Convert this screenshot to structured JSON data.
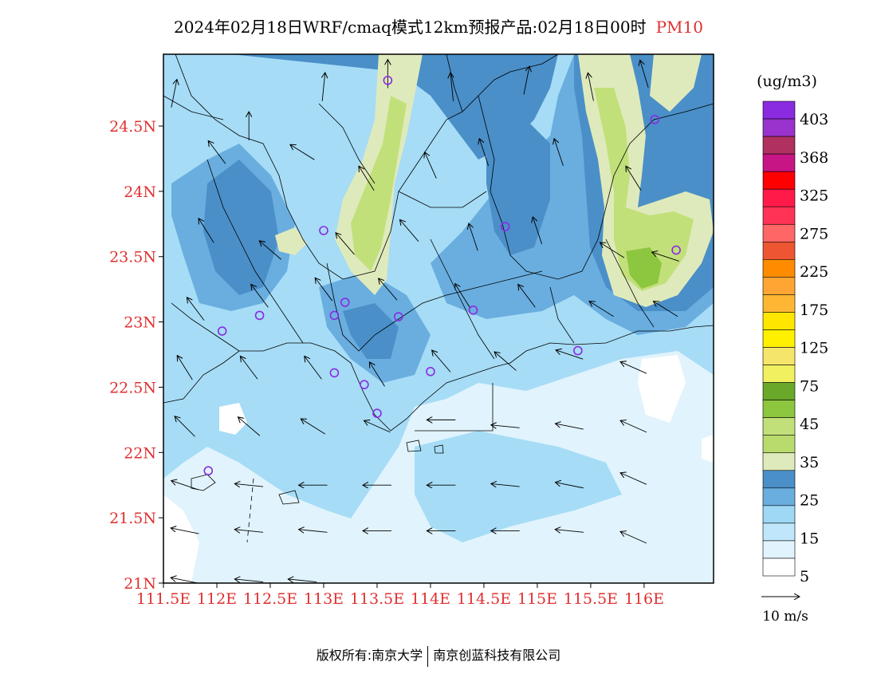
{
  "title": {
    "main": "2024年02月18日WRF/cmaq模式12km预报产品:02月18日00时",
    "pollutant": "PM10"
  },
  "footer": {
    "copyright": "版权所有:南京大学",
    "company": "南京创蓝科技有限公司"
  },
  "axes": {
    "lat_labels": [
      "24.5N",
      "24N",
      "23.5N",
      "23N",
      "22.5N",
      "22N",
      "21.5N",
      "21N"
    ],
    "lon_labels": [
      "111.5E",
      "112E",
      "112.5E",
      "113E",
      "113.5E",
      "114E",
      "114.5E",
      "115E",
      "115.5E",
      "116E"
    ],
    "lat_values": [
      24.5,
      24.0,
      23.5,
      23.0,
      22.5,
      22.0,
      21.5,
      21.0
    ],
    "lon_values": [
      111.5,
      112.0,
      112.5,
      113.0,
      113.5,
      114.0,
      114.5,
      115.0,
      115.5,
      116.0
    ],
    "label_color": "#e03030"
  },
  "legend": {
    "unit": "(ug/m3)",
    "labels": [
      "403",
      "368",
      "325",
      "275",
      "225",
      "175",
      "125",
      "75",
      "45",
      "35",
      "25",
      "15",
      "5"
    ],
    "colors_top_to_bottom": [
      "#8a2be2",
      "#9a32cd",
      "#b03060",
      "#c71585",
      "#ff0000",
      "#ff1a4a",
      "#ff3355",
      "#ff6666",
      "#ee5533",
      "#ff8c00",
      "#ffa533",
      "#ffb733",
      "#ffe600",
      "#fff000",
      "#f5e66b",
      "#f0f060",
      "#6aa82a",
      "#8dc63f",
      "#c2e07a",
      "#b9db6e",
      "#dfeabc",
      "#4a8fc8",
      "#6aaee0",
      "#9ed8f5",
      "#bfe6fb",
      "#e1f3fc",
      "#ffffff"
    ]
  },
  "wind_key": {
    "label": "10 m/s"
  },
  "map_colors": {
    "c5": "#e1f3fc",
    "c10": "#a6dcf6",
    "c15": "#6aaee0",
    "c20": "#4a8fc8",
    "c25": "#dfeabc",
    "c30": "#c2e07a",
    "c40": "#8dc63f"
  },
  "stations": [
    {
      "lon": 113.6,
      "lat": 24.85
    },
    {
      "lon": 116.1,
      "lat": 24.55
    },
    {
      "lon": 113.0,
      "lat": 23.7
    },
    {
      "lon": 114.7,
      "lat": 23.73
    },
    {
      "lon": 116.3,
      "lat": 23.55
    },
    {
      "lon": 113.2,
      "lat": 23.15
    },
    {
      "lon": 112.4,
      "lat": 23.05
    },
    {
      "lon": 113.1,
      "lat": 23.05
    },
    {
      "lon": 113.7,
      "lat": 23.04
    },
    {
      "lon": 114.4,
      "lat": 23.09
    },
    {
      "lon": 112.05,
      "lat": 22.93
    },
    {
      "lon": 115.38,
      "lat": 22.78
    },
    {
      "lon": 113.1,
      "lat": 22.61
    },
    {
      "lon": 114.0,
      "lat": 22.62
    },
    {
      "lon": 113.38,
      "lat": 22.52
    },
    {
      "lon": 113.5,
      "lat": 22.3
    },
    {
      "lon": 111.92,
      "lat": 21.86
    }
  ],
  "wind_vectors": [
    {
      "lon": 111.6,
      "lat": 24.75,
      "u": 0.2,
      "v": 1.0
    },
    {
      "lon": 112.3,
      "lat": 24.5,
      "u": 0.0,
      "v": 1.0
    },
    {
      "lon": 113.0,
      "lat": 24.8,
      "u": 0.1,
      "v": 1.0
    },
    {
      "lon": 113.6,
      "lat": 24.9,
      "u": 0.0,
      "v": 1.0
    },
    {
      "lon": 114.2,
      "lat": 24.8,
      "u": -0.1,
      "v": 1.0
    },
    {
      "lon": 114.9,
      "lat": 24.85,
      "u": 0.2,
      "v": 1.0
    },
    {
      "lon": 115.5,
      "lat": 24.8,
      "u": -0.2,
      "v": 1.0
    },
    {
      "lon": 116.0,
      "lat": 24.9,
      "u": -0.3,
      "v": 1.0
    },
    {
      "lon": 112.0,
      "lat": 24.3,
      "u": -0.6,
      "v": 0.8
    },
    {
      "lon": 112.8,
      "lat": 24.3,
      "u": -0.8,
      "v": 0.5
    },
    {
      "lon": 113.4,
      "lat": 24.1,
      "u": -0.5,
      "v": 0.8
    },
    {
      "lon": 114.0,
      "lat": 24.2,
      "u": -0.4,
      "v": 0.9
    },
    {
      "lon": 114.5,
      "lat": 24.3,
      "u": -0.3,
      "v": 0.9
    },
    {
      "lon": 115.2,
      "lat": 24.3,
      "u": -0.3,
      "v": 0.9
    },
    {
      "lon": 115.9,
      "lat": 24.1,
      "u": -0.5,
      "v": 0.8
    },
    {
      "lon": 111.9,
      "lat": 23.7,
      "u": -0.5,
      "v": 0.8
    },
    {
      "lon": 112.5,
      "lat": 23.55,
      "u": -0.7,
      "v": 0.6
    },
    {
      "lon": 113.2,
      "lat": 23.6,
      "u": -0.6,
      "v": 0.7
    },
    {
      "lon": 113.8,
      "lat": 23.7,
      "u": -0.6,
      "v": 0.7
    },
    {
      "lon": 114.4,
      "lat": 23.65,
      "u": -0.3,
      "v": 0.9
    },
    {
      "lon": 115.0,
      "lat": 23.7,
      "u": -0.3,
      "v": 0.9
    },
    {
      "lon": 115.7,
      "lat": 23.55,
      "u": -0.8,
      "v": 0.5
    },
    {
      "lon": 116.2,
      "lat": 23.5,
      "u": -0.9,
      "v": 0.3
    },
    {
      "lon": 111.8,
      "lat": 23.1,
      "u": -0.6,
      "v": 0.8
    },
    {
      "lon": 112.4,
      "lat": 23.2,
      "u": -0.6,
      "v": 0.8
    },
    {
      "lon": 113.0,
      "lat": 23.25,
      "u": -0.6,
      "v": 0.8
    },
    {
      "lon": 113.6,
      "lat": 23.25,
      "u": -0.6,
      "v": 0.7
    },
    {
      "lon": 114.3,
      "lat": 23.2,
      "u": -0.5,
      "v": 0.8
    },
    {
      "lon": 114.9,
      "lat": 23.2,
      "u": -0.6,
      "v": 0.8
    },
    {
      "lon": 115.6,
      "lat": 23.1,
      "u": -0.8,
      "v": 0.5
    },
    {
      "lon": 116.2,
      "lat": 23.1,
      "u": -0.8,
      "v": 0.5
    },
    {
      "lon": 111.7,
      "lat": 22.65,
      "u": -0.5,
      "v": 0.8
    },
    {
      "lon": 112.3,
      "lat": 22.65,
      "u": -0.6,
      "v": 0.8
    },
    {
      "lon": 112.9,
      "lat": 22.65,
      "u": -0.6,
      "v": 0.8
    },
    {
      "lon": 113.5,
      "lat": 22.6,
      "u": -0.5,
      "v": 0.8
    },
    {
      "lon": 114.1,
      "lat": 22.7,
      "u": -0.6,
      "v": 0.7
    },
    {
      "lon": 114.7,
      "lat": 22.7,
      "u": -0.7,
      "v": 0.6
    },
    {
      "lon": 115.3,
      "lat": 22.75,
      "u": -0.9,
      "v": 0.3
    },
    {
      "lon": 115.9,
      "lat": 22.65,
      "u": -0.9,
      "v": 0.4
    },
    {
      "lon": 111.7,
      "lat": 22.2,
      "u": -0.7,
      "v": 0.7
    },
    {
      "lon": 112.3,
      "lat": 22.2,
      "u": -0.7,
      "v": 0.6
    },
    {
      "lon": 112.9,
      "lat": 22.2,
      "u": -0.8,
      "v": 0.5
    },
    {
      "lon": 113.5,
      "lat": 22.2,
      "u": -0.9,
      "v": 0.4
    },
    {
      "lon": 114.1,
      "lat": 22.25,
      "u": -1.0,
      "v": 0.0
    },
    {
      "lon": 114.7,
      "lat": 22.2,
      "u": -1.0,
      "v": 0.1
    },
    {
      "lon": 115.3,
      "lat": 22.2,
      "u": -1.0,
      "v": 0.2
    },
    {
      "lon": 115.9,
      "lat": 22.2,
      "u": -0.9,
      "v": 0.4
    },
    {
      "lon": 111.7,
      "lat": 21.75,
      "u": -0.9,
      "v": 0.3
    },
    {
      "lon": 112.3,
      "lat": 21.75,
      "u": -1.0,
      "v": 0.1
    },
    {
      "lon": 112.9,
      "lat": 21.75,
      "u": -1.0,
      "v": 0.0
    },
    {
      "lon": 113.5,
      "lat": 21.75,
      "u": -1.0,
      "v": 0.0
    },
    {
      "lon": 114.1,
      "lat": 21.75,
      "u": -1.0,
      "v": 0.0
    },
    {
      "lon": 114.7,
      "lat": 21.75,
      "u": -1.0,
      "v": 0.1
    },
    {
      "lon": 115.3,
      "lat": 21.75,
      "u": -1.0,
      "v": 0.2
    },
    {
      "lon": 115.9,
      "lat": 21.8,
      "u": -0.9,
      "v": 0.4
    },
    {
      "lon": 111.7,
      "lat": 21.4,
      "u": -1.0,
      "v": 0.2
    },
    {
      "lon": 112.3,
      "lat": 21.4,
      "u": -1.0,
      "v": 0.1
    },
    {
      "lon": 112.9,
      "lat": 21.4,
      "u": -1.0,
      "v": 0.1
    },
    {
      "lon": 113.5,
      "lat": 21.4,
      "u": -1.0,
      "v": 0.0
    },
    {
      "lon": 114.1,
      "lat": 21.4,
      "u": -1.0,
      "v": 0.0
    },
    {
      "lon": 114.7,
      "lat": 21.4,
      "u": -1.0,
      "v": 0.0
    },
    {
      "lon": 115.3,
      "lat": 21.4,
      "u": -1.0,
      "v": 0.1
    },
    {
      "lon": 115.9,
      "lat": 21.35,
      "u": -0.9,
      "v": 0.4
    },
    {
      "lon": 111.7,
      "lat": 21.02,
      "u": -1.0,
      "v": 0.2
    },
    {
      "lon": 112.3,
      "lat": 21.02,
      "u": -1.0,
      "v": 0.1
    },
    {
      "lon": 112.8,
      "lat": 21.02,
      "u": -1.0,
      "v": 0.1
    }
  ]
}
